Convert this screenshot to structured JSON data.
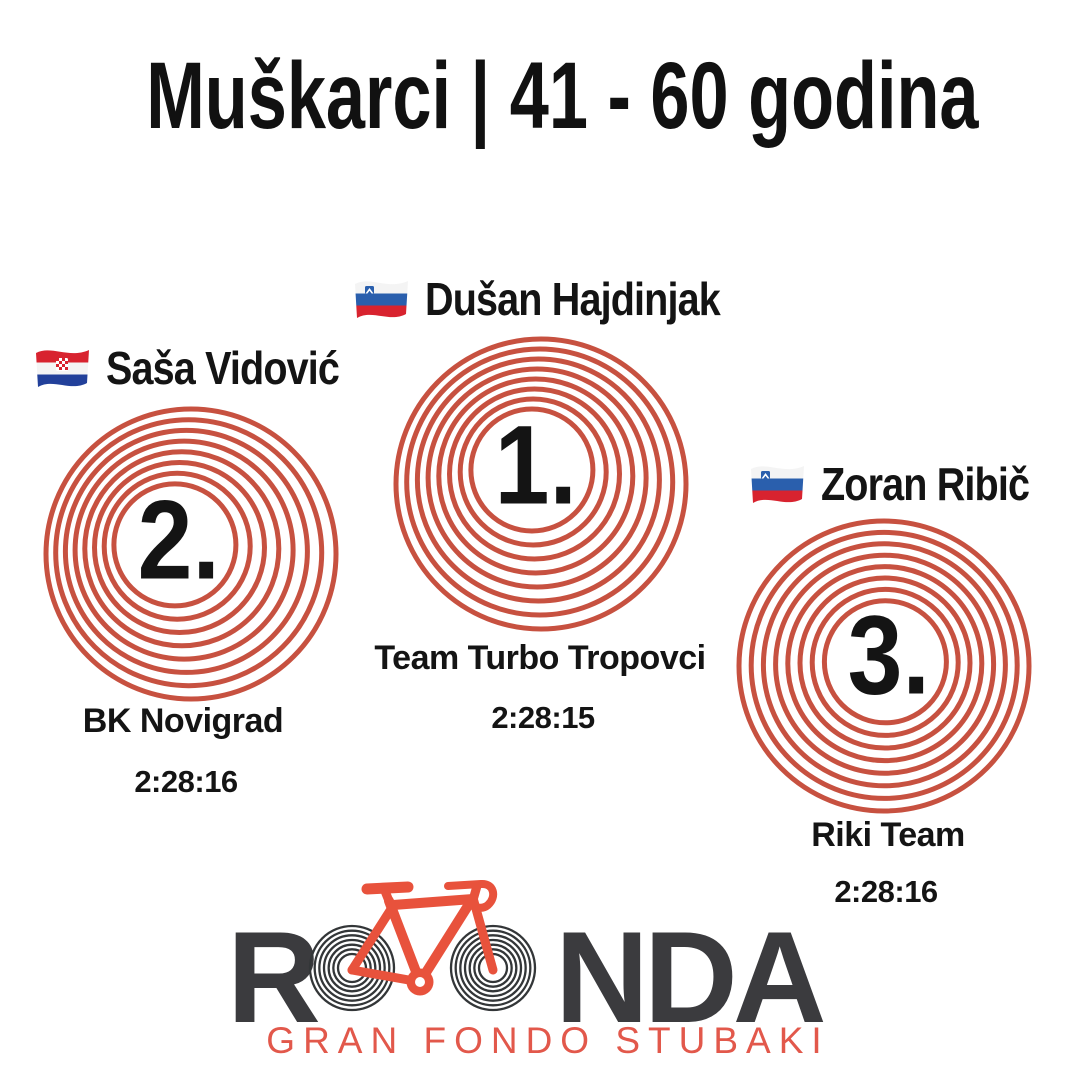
{
  "title": "Muškarci | 41 - 60 godina",
  "colors": {
    "ring_red": "#c75140",
    "bike_red": "#e8523c",
    "logo_gray": "#3b3b3e",
    "wheel_dark": "#333638",
    "subtitle_red": "#e2584b",
    "text_black": "#141414"
  },
  "podium": [
    {
      "place": "1.",
      "flag_icon": "slovenia-flag-icon",
      "name": "Dušan Hajdinjak",
      "team": "Team Turbo Tropovci",
      "time": "2:28:15"
    },
    {
      "place": "2.",
      "flag_icon": "croatia-flag-icon",
      "name": "Saša Vidović",
      "team": "BK Novigrad",
      "time": "2:28:16"
    },
    {
      "place": "3.",
      "flag_icon": "slovenia-flag-icon",
      "name": "Zoran Ribič",
      "team": "Riki Team",
      "time": "2:28:16"
    }
  ],
  "logo": {
    "brand_full": "ROONDA",
    "brand_prefix": "R",
    "brand_suffix": "NDA",
    "subtitle": "GRAN FONDO STUBAKI"
  }
}
